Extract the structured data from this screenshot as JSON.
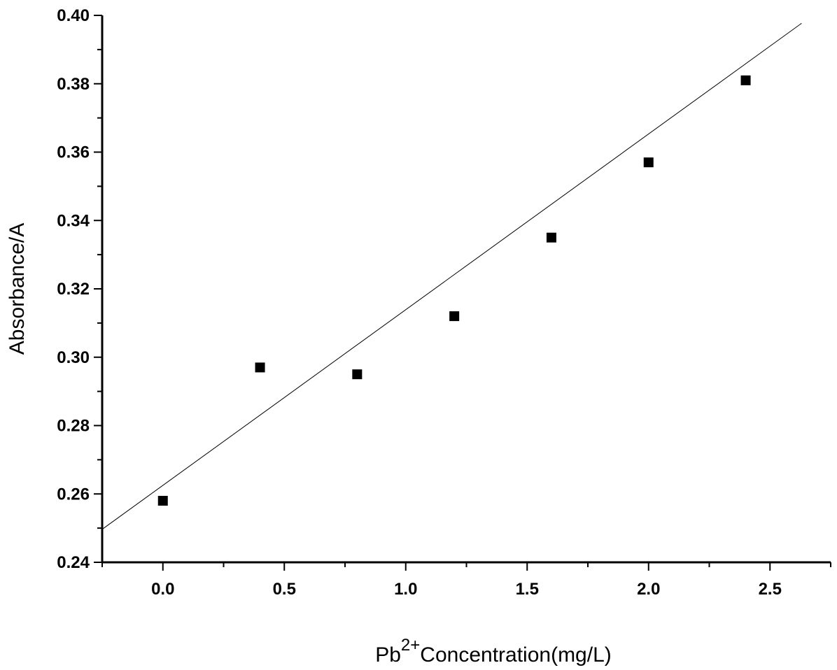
{
  "chart_data": {
    "type": "scatter",
    "x": [
      0.0,
      0.4,
      0.8,
      1.2,
      1.6,
      2.0,
      2.4
    ],
    "y": [
      0.258,
      0.297,
      0.295,
      0.312,
      0.335,
      0.357,
      0.381
    ],
    "fit_line": {
      "type": "linear",
      "slope": 0.0514,
      "intercept": 0.2625
    },
    "xlabel": {
      "prefix": "Pb",
      "superscript": "2+",
      "suffix": "Concentration(mg/L)"
    },
    "ylabel": "Absorbance/A",
    "xlim": [
      -0.25,
      2.75
    ],
    "ylim": [
      0.24,
      0.4
    ],
    "xticks": [
      "0.0",
      "0.5",
      "1.0",
      "1.5",
      "2.0",
      "2.5"
    ],
    "yticks": [
      "0.24",
      "0.26",
      "0.28",
      "0.30",
      "0.32",
      "0.34",
      "0.36",
      "0.38",
      "0.40"
    ],
    "grid": false,
    "legend": "none",
    "marker_color": "#000000",
    "line_color": "#000000"
  }
}
